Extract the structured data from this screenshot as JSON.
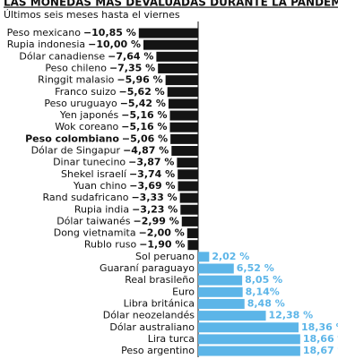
{
  "chart_data": {
    "type": "bar",
    "orientation": "horizontal",
    "title": "LAS MONEDAS MÁS DEVALUADAS DURANTE LA PANDEMIA",
    "subtitle": "Últimos seis meses hasta el viernes",
    "categories": [
      "Peso mexicano",
      "Rupia indonesia",
      "Dólar canadiense",
      "Peso chileno",
      "Ringgit malasio",
      "Franco suizo",
      "Peso uruguayo",
      "Yen japonés",
      "Wok coreano",
      "Peso colombiano",
      "Dólar de Singapur",
      "Dinar tunecino",
      "Shekel israelí",
      "Yuan chino",
      "Rand sudafricano",
      "Rupia india",
      "Dólar taiwanés",
      "Dong vietnamita",
      "Rublo ruso",
      "Sol peruano",
      "Guaraní paraguayo",
      "Real brasileño",
      "Euro",
      "Libra británica",
      "Dólar neozelandés",
      "Dólar australiano",
      "Lira turca",
      "Peso argentino"
    ],
    "values": [
      -10.85,
      -10.0,
      -7.64,
      -7.35,
      -5.96,
      -5.62,
      -5.42,
      -5.16,
      -5.16,
      -5.06,
      -4.87,
      -3.87,
      -3.74,
      -3.69,
      -3.33,
      -3.23,
      -2.99,
      -2.0,
      -1.9,
      2.02,
      6.52,
      8.05,
      8.14,
      8.48,
      12.38,
      18.36,
      18.66,
      18.67
    ],
    "value_labels": [
      "−10,85 %",
      "−10,00 %",
      "−7,64 %",
      "−7,35 %",
      "−5,96 %",
      "−5,62 %",
      "−5,42 %",
      "−5,16 %",
      "−5,16 %",
      "−5,06 %",
      "−4,87 %",
      "−3,87 %",
      "−3,74 %",
      "−3,69 %",
      "−3,33 %",
      "−3,23 %",
      "−2,99 %",
      "−2,00 %",
      "−1,90 %",
      "2,02 %",
      "6,52 %",
      "8,05 %",
      "8,14%",
      "8,48 %",
      "12,38 %",
      "18,36 %",
      "18,66 %",
      "18,67 %"
    ],
    "colors": {
      "negative": "#141414",
      "positive": "#5cb5e8"
    },
    "emphasized_category": 9
  }
}
